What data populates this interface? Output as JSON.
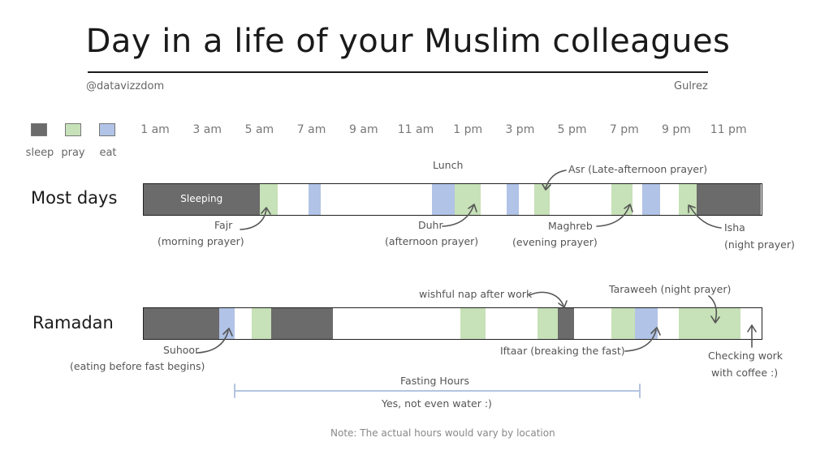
{
  "header": {
    "title": "Day in a life of your Muslim colleagues",
    "handle": "@datavizzdom",
    "author": "Gulrez"
  },
  "colors": {
    "sleep": "#6b6b6b",
    "pray": "#c7e1b8",
    "eat": "#b1c3e6",
    "axis": "#b4c4e0"
  },
  "chart_data": {
    "type": "bar",
    "legend": [
      {
        "key": "sleep",
        "label": "sleep"
      },
      {
        "key": "pray",
        "label": "pray"
      },
      {
        "key": "eat",
        "label": "eat"
      }
    ],
    "x_ticks": [
      "1 am",
      "3 am",
      "5 am",
      "7 am",
      "9 am",
      "11 am",
      "1 pm",
      "3 pm",
      "5 pm",
      "7 pm",
      "9 pm",
      "11 pm"
    ],
    "x_range_hours": [
      0,
      24
    ],
    "rows": [
      {
        "label": "Most days",
        "segments": [
          {
            "type": "sleep",
            "start": 0,
            "end": 4.5,
            "label": "Sleeping"
          },
          {
            "type": "pray",
            "start": 4.5,
            "end": 5.2
          },
          {
            "type": "eat",
            "start": 6.4,
            "end": 6.9
          },
          {
            "type": "eat",
            "start": 11.2,
            "end": 12.1
          },
          {
            "type": "pray",
            "start": 12.1,
            "end": 13.1
          },
          {
            "type": "eat",
            "start": 14.1,
            "end": 14.6
          },
          {
            "type": "pray",
            "start": 15.2,
            "end": 15.8
          },
          {
            "type": "pray",
            "start": 18.2,
            "end": 19.0
          },
          {
            "type": "eat",
            "start": 19.4,
            "end": 20.1
          },
          {
            "type": "pray",
            "start": 20.8,
            "end": 21.5
          },
          {
            "type": "sleep",
            "start": 21.5,
            "end": 24
          }
        ]
      },
      {
        "label": "Ramadan",
        "segments": [
          {
            "type": "sleep",
            "start": 0,
            "end": 2.95
          },
          {
            "type": "eat",
            "start": 2.95,
            "end": 3.55
          },
          {
            "type": "pray",
            "start": 4.2,
            "end": 4.95
          },
          {
            "type": "sleep",
            "start": 4.95,
            "end": 7.35
          },
          {
            "type": "pray",
            "start": 12.3,
            "end": 13.3
          },
          {
            "type": "pray",
            "start": 15.3,
            "end": 16.1
          },
          {
            "type": "sleep",
            "start": 16.1,
            "end": 16.75
          },
          {
            "type": "pray",
            "start": 18.2,
            "end": 19.1
          },
          {
            "type": "eat",
            "start": 19.1,
            "end": 20.0
          },
          {
            "type": "pray",
            "start": 20.8,
            "end": 23.2
          }
        ]
      }
    ]
  },
  "annotations": {
    "fajr": [
      "Fajr",
      "(morning prayer)"
    ],
    "lunch": "Lunch",
    "duhr": [
      "Duhr",
      "(afternoon prayer)"
    ],
    "asr": "Asr  (Late-afternoon prayer)",
    "maghreb": [
      "Maghreb",
      "(evening prayer)"
    ],
    "isha": [
      "Isha",
      "(night prayer)"
    ],
    "suhoor": [
      "Suhoor",
      "(eating before fast begins)"
    ],
    "nap": "wishful nap after work",
    "taraweeh": "Taraweeh (night prayer)",
    "iftaar": "Iftaar (breaking the fast)",
    "checking": [
      "Checking work",
      "with coffee :)"
    ],
    "fasting_title": "Fasting Hours",
    "fasting_sub": "Yes, not even water :)"
  },
  "footer": {
    "note": "Note: The actual hours would vary by location"
  }
}
